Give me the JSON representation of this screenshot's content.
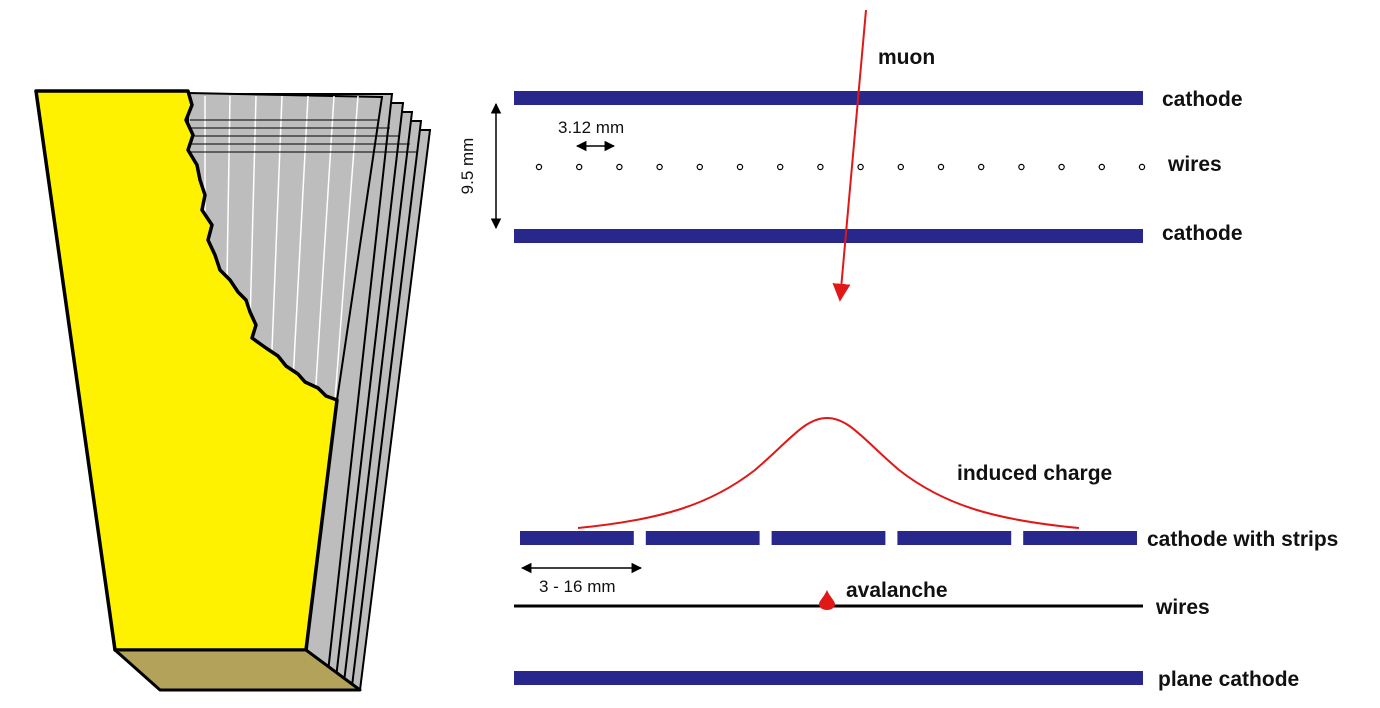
{
  "colors": {
    "electrode": "#28288c",
    "muon": "#e01818",
    "charge_curve": "#e01818",
    "avalanche": "#e01818",
    "chamber_face": "#fff200",
    "chamber_bottom": "#b3a35a",
    "chamber_layers": "#bdbdbd",
    "outline": "#000000"
  },
  "top_view": {
    "muon_label": "muon",
    "cathode_top_label": "cathode",
    "wires_label": "wires",
    "cathode_bottom_label": "cathode",
    "wire_pitch_label": "3.12 mm",
    "gap_label": "9.5 mm",
    "wire_count": 16
  },
  "bottom_view": {
    "induced_charge_label": "induced charge",
    "cathode_strips_label": "cathode with strips",
    "strip_width_label": "3 - 16 mm",
    "avalanche_label": "avalanche",
    "wires_label": "wires",
    "plane_cathode_label": "plane cathode",
    "strip_count": 5
  },
  "icons": {
    "chamber": "cutaway-chamber-illustration",
    "muon_arrow": "arrow-down-icon",
    "avalanche": "drop-icon"
  }
}
